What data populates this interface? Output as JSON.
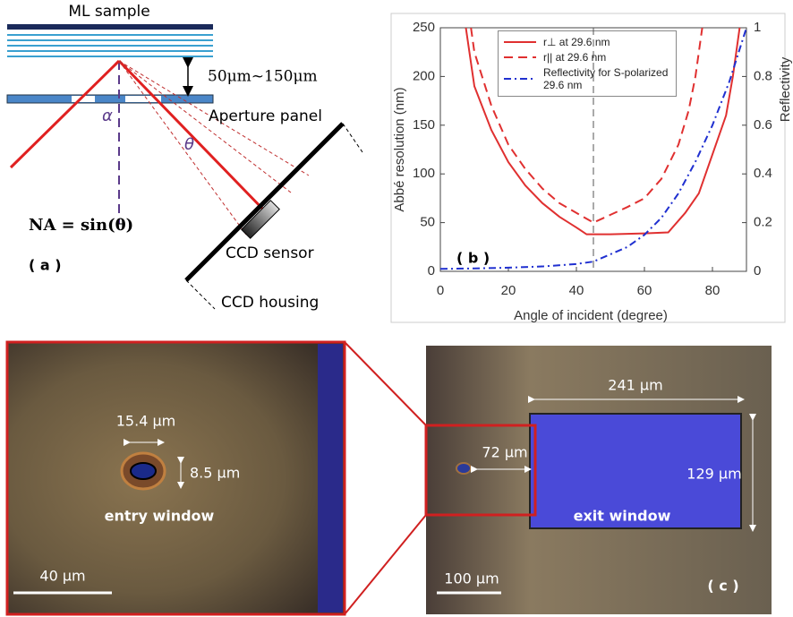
{
  "panel_a": {
    "sample": "ML sample",
    "gap": "50μm~150μm",
    "aperture": "Aperture panel",
    "alpha": "α",
    "theta": "θ",
    "na": "NA = sin(θ)",
    "label": "( a )",
    "sensor": "CCD sensor",
    "housing": "CCD housing"
  },
  "chart_data": {
    "type": "line",
    "annotation": "( b )",
    "xlabel": "Angle of incident (degree)",
    "ylabel": "Abbé resolution (nm)",
    "y2label": "Reflectivity",
    "xlim": [
      0,
      90
    ],
    "xticks": [
      0,
      20,
      40,
      60,
      80
    ],
    "ylim": [
      0,
      250
    ],
    "yticks": [
      0,
      50,
      100,
      150,
      200,
      250
    ],
    "y2lim": [
      0,
      1
    ],
    "y2ticks": [
      0,
      0.2,
      0.4,
      0.6,
      0.8,
      1
    ],
    "vline": 45,
    "series": [
      {
        "name": "r⊥ at 29.6 nm",
        "color": "#e03030",
        "dash": "solid",
        "x": [
          7.5,
          10,
          15,
          20,
          25,
          30,
          35,
          40,
          43,
          50,
          60,
          67,
          72,
          76,
          80,
          84,
          86,
          88
        ],
        "values": [
          250,
          190,
          145,
          112,
          88,
          70,
          56,
          45,
          38,
          38,
          39,
          40,
          60,
          80,
          120,
          160,
          200,
          250
        ]
      },
      {
        "name": "r|| at 29.6 nm",
        "color": "#e03030",
        "dash": "dashed",
        "x": [
          9,
          10,
          15,
          20,
          25,
          30,
          35,
          40,
          45,
          50,
          55,
          60,
          65,
          70,
          73,
          75,
          77
        ],
        "values": [
          250,
          225,
          170,
          130,
          105,
          85,
          70,
          60,
          50,
          58,
          66,
          75,
          95,
          130,
          165,
          200,
          250
        ]
      },
      {
        "name": "Reflectivity for S-polarized 29.6 nm",
        "color": "#2030d0",
        "dash": "dashdot",
        "axis": "y2",
        "x": [
          0,
          10,
          20,
          30,
          40,
          45,
          50,
          55,
          60,
          65,
          70,
          75,
          80,
          85,
          90
        ],
        "values": [
          0.01,
          0.012,
          0.015,
          0.02,
          0.03,
          0.04,
          0.07,
          0.1,
          0.15,
          0.22,
          0.32,
          0.45,
          0.6,
          0.78,
          1
        ]
      }
    ],
    "legend": "upper center"
  },
  "panel_c": {
    "hole_width": "15.4 μm",
    "hole_height": "8.5 μm",
    "entry": "entry window",
    "scale_left": "40 μm",
    "exit_width": "241 μm",
    "offset": "72 μm",
    "exit_height": "129 μm",
    "exit": "exit window",
    "scale_right": "100 μm",
    "label": "( c )"
  }
}
